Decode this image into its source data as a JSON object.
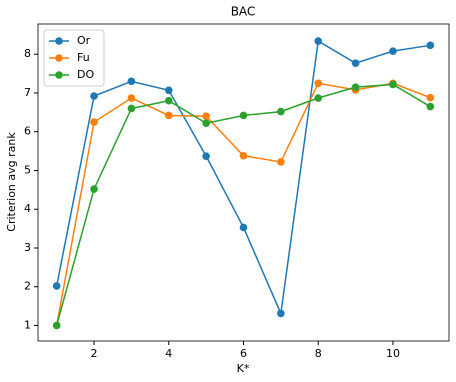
{
  "chart_data": {
    "type": "line",
    "title": "BAC",
    "x_label": "K*",
    "y_label": "Criterion avg rank",
    "x": [
      1,
      2,
      3,
      4,
      5,
      6,
      7,
      8,
      9,
      10,
      11
    ],
    "series": [
      {
        "name": "Or",
        "color": "#1f77b4",
        "values": [
          2.02,
          6.92,
          7.3,
          7.07,
          5.37,
          3.53,
          1.31,
          8.34,
          7.77,
          8.08,
          8.23
        ]
      },
      {
        "name": "Fu",
        "color": "#ff7f0e",
        "values": [
          1.0,
          6.25,
          6.87,
          6.42,
          6.4,
          5.38,
          5.22,
          7.25,
          7.08,
          7.25,
          6.88
        ]
      },
      {
        "name": "DO",
        "color": "#2ca02c",
        "values": [
          1.0,
          4.52,
          6.6,
          6.8,
          6.22,
          6.42,
          6.52,
          6.87,
          7.15,
          7.22,
          6.65
        ]
      }
    ],
    "xlim": [
      0.5,
      11.5
    ],
    "xticks": [
      2,
      4,
      6,
      8,
      10
    ],
    "ylim": [
      0.6,
      8.78
    ],
    "yticks": [
      1,
      2,
      3,
      4,
      5,
      6,
      7,
      8
    ],
    "legend": "upper left"
  }
}
